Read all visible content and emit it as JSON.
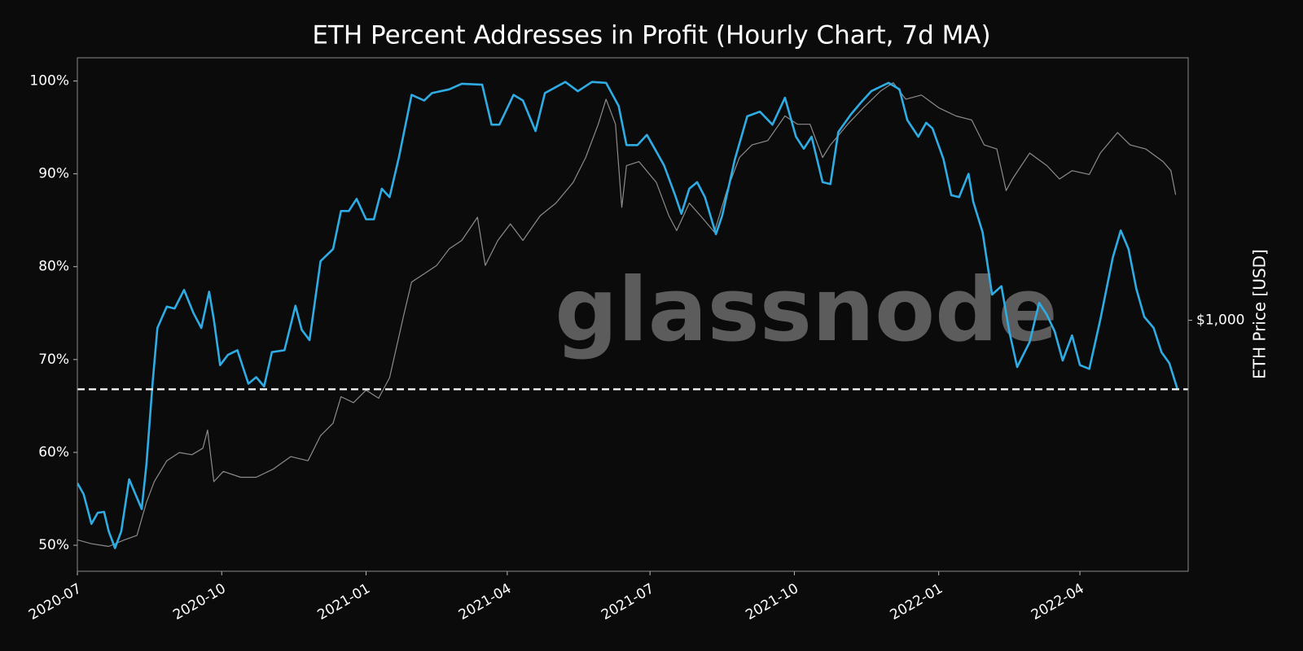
{
  "chart_data": {
    "type": "line",
    "title": "ETH Percent Addresses in Profit (Hourly Chart, 7d MA)",
    "y2label": "ETH Price [USD]",
    "watermark": "glassnode",
    "xlim": [
      "2020-07-01",
      "2022-06-09"
    ],
    "xticks": [
      "2020-07",
      "2020-10",
      "2021-01",
      "2021-04",
      "2021-07",
      "2021-10",
      "2022-01",
      "2022-04"
    ],
    "ylim": [
      47.2,
      102.5
    ],
    "yticks": [
      {
        "value": 50,
        "label": "50%"
      },
      {
        "value": 60,
        "label": "60%"
      },
      {
        "value": 70,
        "label": "70%"
      },
      {
        "value": 80,
        "label": "80%"
      },
      {
        "value": 90,
        "label": "90%"
      },
      {
        "value": 100,
        "label": "100%"
      }
    ],
    "y2lim": [
      191,
      5650
    ],
    "y2log": true,
    "y2ticks": [
      {
        "value": 1000,
        "label": "$1,000"
      }
    ],
    "reference_line": {
      "value": 66.8,
      "color": "#ffffff",
      "dashed": true
    },
    "grid": false,
    "series": [
      {
        "color": "#2eace3",
        "x": [
          "2020-07-01",
          "2020-07-05",
          "2020-07-10",
          "2020-07-14",
          "2020-07-18",
          "2020-07-21",
          "2020-07-25",
          "2020-07-29",
          "2020-08-03",
          "2020-08-07",
          "2020-08-11",
          "2020-08-14",
          "2020-08-18",
          "2020-08-21",
          "2020-08-27",
          "2020-09-01",
          "2020-09-07",
          "2020-09-13",
          "2020-09-18",
          "2020-09-23",
          "2020-09-26",
          "2020-09-30",
          "2020-10-05",
          "2020-10-11",
          "2020-10-18",
          "2020-10-23",
          "2020-10-28",
          "2020-11-02",
          "2020-11-10",
          "2020-11-17",
          "2020-11-21",
          "2020-11-26",
          "2020-12-03",
          "2020-12-11",
          "2020-12-16",
          "2020-12-21",
          "2020-12-26",
          "2021-01-01",
          "2021-01-06",
          "2021-01-11",
          "2021-01-16",
          "2021-01-22",
          "2021-01-30",
          "2021-02-07",
          "2021-02-12",
          "2021-02-23",
          "2021-03-03",
          "2021-03-16",
          "2021-03-22",
          "2021-03-27",
          "2021-04-05",
          "2021-04-11",
          "2021-04-19",
          "2021-04-25",
          "2021-05-08",
          "2021-05-16",
          "2021-05-25",
          "2021-06-03",
          "2021-06-11",
          "2021-06-16",
          "2021-06-23",
          "2021-06-29",
          "2021-07-05",
          "2021-07-10",
          "2021-07-17",
          "2021-07-21",
          "2021-07-26",
          "2021-07-31",
          "2021-08-05",
          "2021-08-12",
          "2021-08-16",
          "2021-08-24",
          "2021-09-01",
          "2021-09-09",
          "2021-09-17",
          "2021-09-25",
          "2021-10-02",
          "2021-10-07",
          "2021-10-12",
          "2021-10-19",
          "2021-10-24",
          "2021-10-29",
          "2021-11-06",
          "2021-11-12",
          "2021-11-19",
          "2021-11-30",
          "2021-12-07",
          "2021-12-12",
          "2021-12-19",
          "2021-12-24",
          "2021-12-28",
          "2022-01-04",
          "2022-01-09",
          "2022-01-14",
          "2022-01-20",
          "2022-01-23",
          "2022-01-29",
          "2022-02-04",
          "2022-02-10",
          "2022-02-15",
          "2022-02-20",
          "2022-02-28",
          "2022-03-06",
          "2022-03-11",
          "2022-03-16",
          "2022-03-21",
          "2022-03-27",
          "2022-04-01",
          "2022-04-07",
          "2022-04-14",
          "2022-04-22",
          "2022-04-27",
          "2022-05-02",
          "2022-05-07",
          "2022-05-12",
          "2022-05-18",
          "2022-05-23",
          "2022-05-28",
          "2022-06-02"
        ],
        "values": [
          56.7,
          55.5,
          52.3,
          53.5,
          53.6,
          51.5,
          49.7,
          51.5,
          57.1,
          55.5,
          53.9,
          58.7,
          67.6,
          73.4,
          75.7,
          75.5,
          77.5,
          75,
          73.4,
          77.3,
          74.3,
          69.4,
          70.5,
          71,
          67.4,
          68.1,
          67.1,
          70.8,
          71,
          75.8,
          73.2,
          72.1,
          80.6,
          81.9,
          86,
          86,
          87.3,
          85.1,
          85.1,
          88.4,
          87.5,
          91.8,
          98.5,
          97.9,
          98.7,
          99.1,
          99.7,
          99.6,
          95.3,
          95.3,
          98.5,
          97.9,
          94.6,
          98.7,
          99.9,
          98.9,
          99.9,
          99.8,
          97.3,
          93.1,
          93.1,
          94.2,
          92.4,
          90.9,
          87.7,
          85.7,
          88.4,
          89.1,
          87.5,
          83.5,
          85.5,
          91.5,
          96.2,
          96.7,
          95.3,
          98.2,
          94,
          92.7,
          94,
          89.1,
          88.9,
          94.5,
          96.4,
          97.6,
          98.9,
          99.8,
          99.1,
          95.8,
          94,
          95.5,
          94.9,
          91.6,
          87.7,
          87.5,
          90,
          87,
          83.7,
          77,
          77.9,
          73,
          69.2,
          71.9,
          76.1,
          74.8,
          73,
          69.9,
          72.6,
          69.4,
          69,
          74.3,
          81,
          83.9,
          81.9,
          77.6,
          74.6,
          73.4,
          70.8,
          69.6,
          66.9
        ]
      },
      {
        "color": "#8c8c8c",
        "axis": "y2",
        "x": [
          "2020-07-01",
          "2020-07-10",
          "2020-07-21",
          "2020-07-31",
          "2020-08-08",
          "2020-08-14",
          "2020-08-19",
          "2020-08-27",
          "2020-09-04",
          "2020-09-12",
          "2020-09-19",
          "2020-09-22",
          "2020-09-26",
          "2020-10-02",
          "2020-10-13",
          "2020-10-23",
          "2020-11-03",
          "2020-11-14",
          "2020-11-25",
          "2020-12-03",
          "2020-12-11",
          "2020-12-16",
          "2020-12-24",
          "2021-01-01",
          "2021-01-09",
          "2021-01-16",
          "2021-01-25",
          "2021-01-30",
          "2021-02-07",
          "2021-02-15",
          "2021-02-23",
          "2021-03-03",
          "2021-03-13",
          "2021-03-18",
          "2021-03-26",
          "2021-04-03",
          "2021-04-11",
          "2021-04-22",
          "2021-05-02",
          "2021-05-13",
          "2021-05-21",
          "2021-05-29",
          "2021-06-03",
          "2021-06-09",
          "2021-06-13",
          "2021-06-16",
          "2021-06-24",
          "2021-07-05",
          "2021-07-13",
          "2021-07-18",
          "2021-07-26",
          "2021-08-03",
          "2021-08-11",
          "2021-08-19",
          "2021-08-27",
          "2021-09-04",
          "2021-09-14",
          "2021-09-25",
          "2021-10-03",
          "2021-10-11",
          "2021-10-19",
          "2021-10-24",
          "2021-11-04",
          "2021-11-14",
          "2021-11-25",
          "2021-12-03",
          "2021-12-11",
          "2021-12-21",
          "2022-01-01",
          "2022-01-12",
          "2022-01-22",
          "2022-01-30",
          "2022-02-07",
          "2022-02-13",
          "2022-02-17",
          "2022-02-28",
          "2022-03-11",
          "2022-03-19",
          "2022-03-27",
          "2022-04-07",
          "2022-04-14",
          "2022-04-25",
          "2022-05-03",
          "2022-05-13",
          "2022-05-24",
          "2022-05-29",
          "2022-06-01"
        ],
        "values": [
          235,
          229,
          225,
          235,
          242,
          301,
          345,
          396,
          418,
          412,
          430,
          485,
          345,
          369,
          355,
          355,
          375,
          407,
          396,
          467,
          507,
          604,
          581,
          631,
          598,
          685,
          1033,
          1287,
          1359,
          1436,
          1602,
          1693,
          1973,
          1436,
          1693,
          1889,
          1693,
          1993,
          2166,
          2484,
          2927,
          3645,
          4299,
          3645,
          2107,
          2773,
          2849,
          2484,
          1993,
          1807,
          2166,
          1973,
          1788,
          2353,
          2927,
          3179,
          3271,
          3850,
          3645,
          3645,
          2927,
          3179,
          3645,
          4064,
          4539,
          4795,
          4299,
          4418,
          4064,
          3850,
          3749,
          3179,
          3095,
          2353,
          2539,
          3013,
          2773,
          2539,
          2684,
          2617,
          3013,
          3450,
          3179,
          3095,
          2849,
          2684,
          2288
        ]
      }
    ]
  }
}
